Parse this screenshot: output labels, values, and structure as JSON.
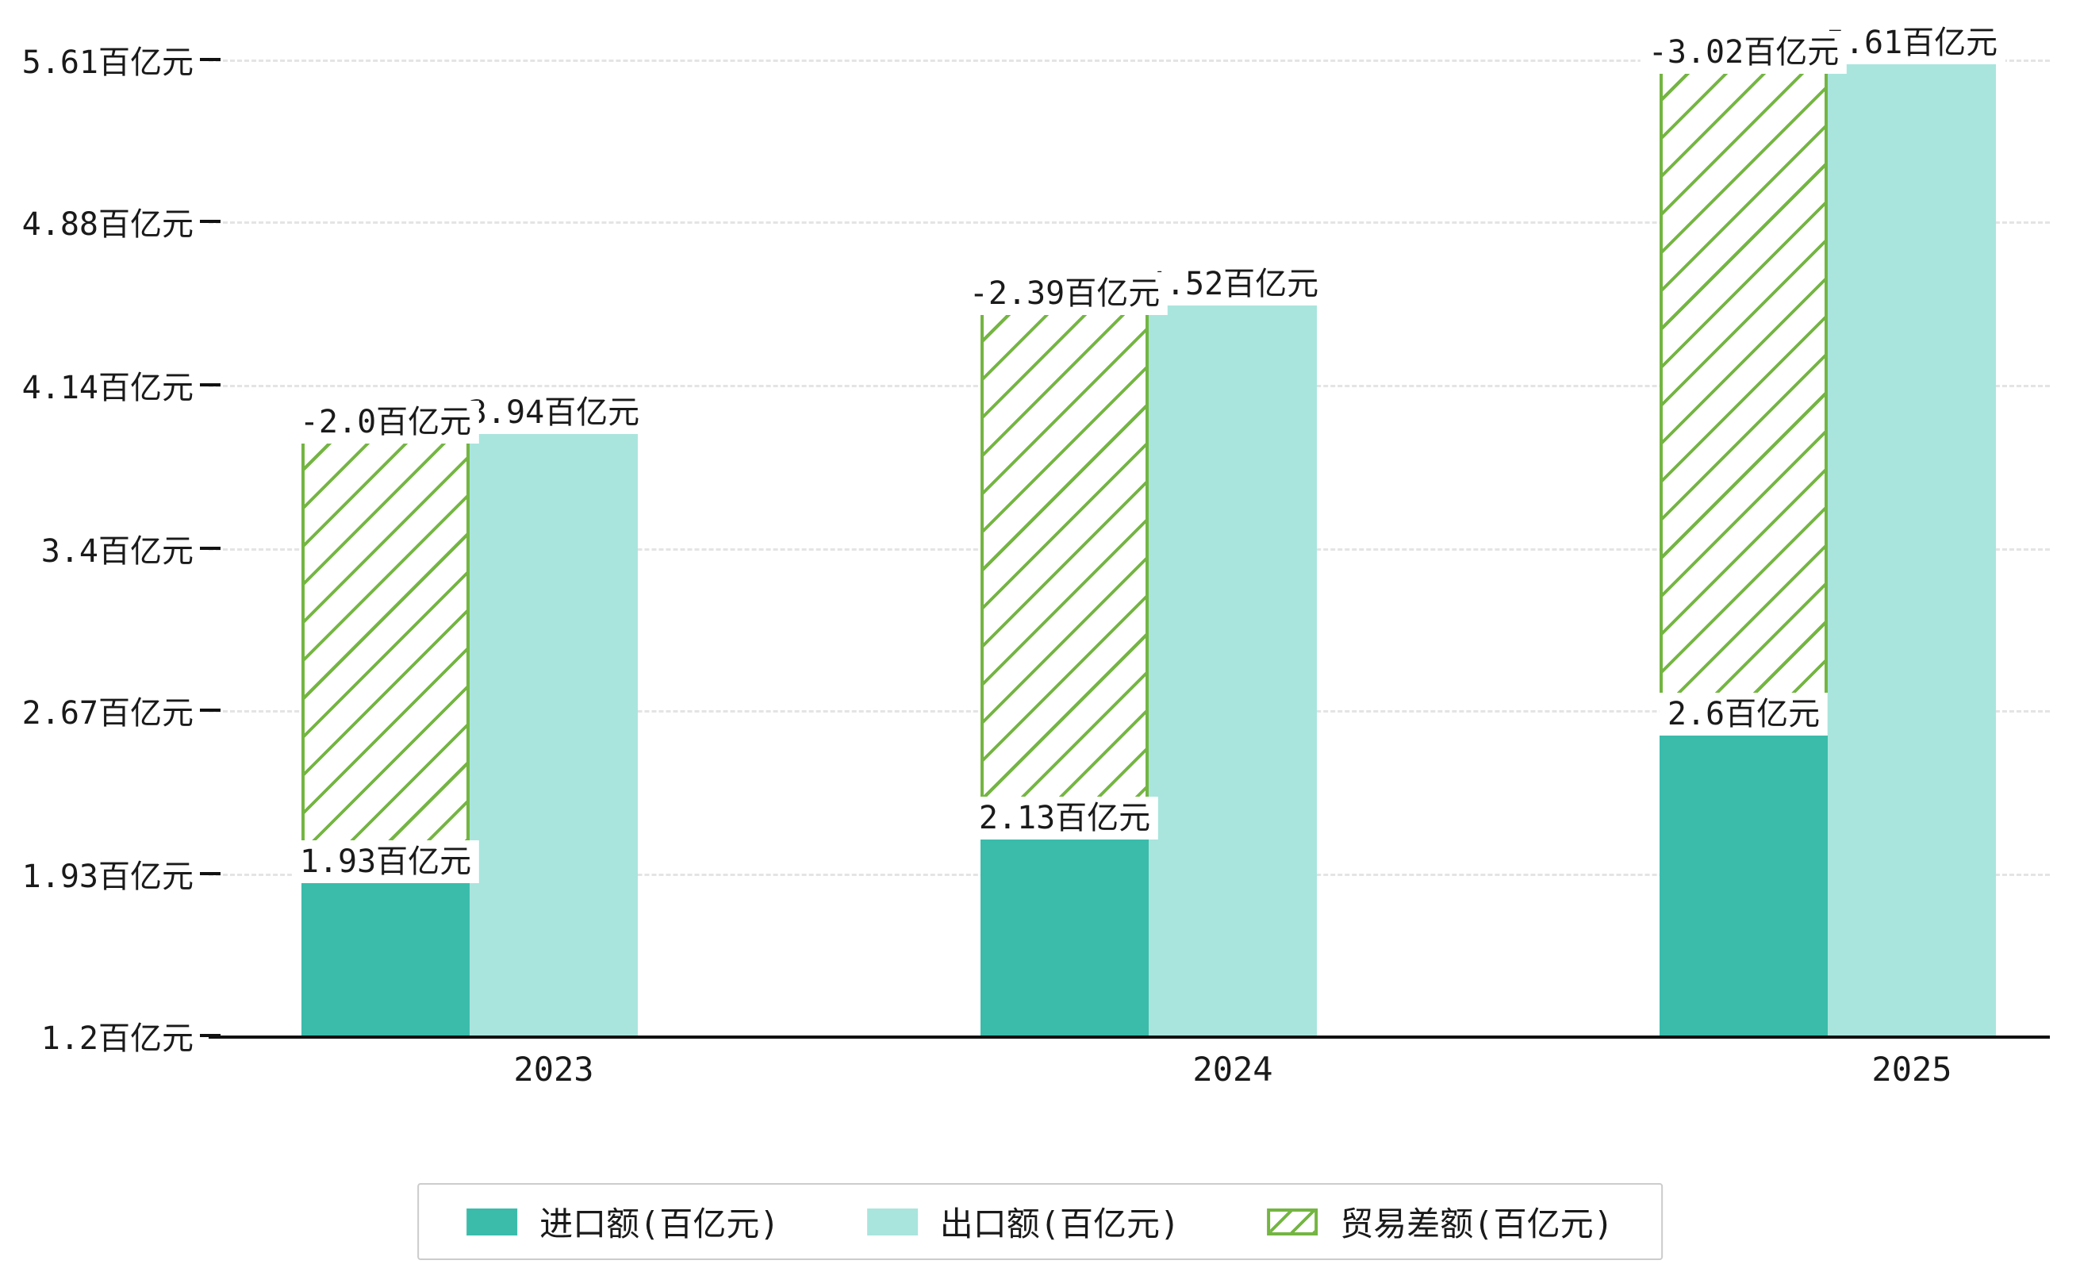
{
  "chart_data": {
    "type": "bar",
    "categories": [
      "2023",
      "2024",
      "2025"
    ],
    "series": [
      {
        "name": "进口额(百亿元)",
        "values": [
          1.93,
          2.13,
          2.6
        ],
        "labels": [
          "1.93百亿元",
          "2.13百亿元",
          "2.6百亿元"
        ],
        "color": "#3bbcab",
        "hatch": false
      },
      {
        "name": "出口额(百亿元)",
        "values": [
          3.94,
          4.52,
          5.61
        ],
        "labels": [
          "3.94百亿元",
          "4.52百亿元",
          "5.61百亿元"
        ],
        "color": "#a9e5dd",
        "hatch": false
      },
      {
        "name": "贸易差额(百亿元)",
        "values": [
          -2.0,
          -2.39,
          -3.02
        ],
        "labels": [
          "-2.0百亿元",
          "-2.39百亿元",
          "-3.02百亿元"
        ],
        "color": "#74b542",
        "hatch": true,
        "note": "floating hatched bar spanning from import top to export top"
      }
    ],
    "y_ticks": [
      {
        "value": 1.2,
        "label": "1.2百亿元"
      },
      {
        "value": 1.93,
        "label": "1.93百亿元"
      },
      {
        "value": 2.67,
        "label": "2.67百亿元"
      },
      {
        "value": 3.4,
        "label": "3.4百亿元"
      },
      {
        "value": 4.14,
        "label": "4.14百亿元"
      },
      {
        "value": 4.88,
        "label": "4.88百亿元"
      },
      {
        "value": 5.61,
        "label": "5.61百亿元"
      }
    ],
    "ylim": [
      1.2,
      5.61
    ],
    "xlabel": "",
    "ylabel": "",
    "title": "",
    "grid": "dashed-horizontal",
    "legend_position": "bottom-center",
    "legend": [
      "进口额(百亿元)",
      "出口额(百亿元)",
      "贸易差额(百亿元)"
    ]
  }
}
